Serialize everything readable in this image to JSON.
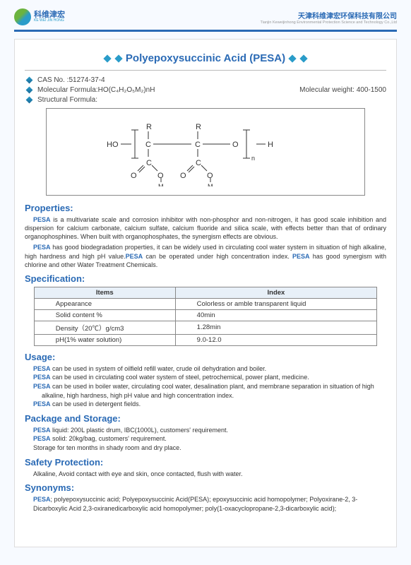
{
  "header": {
    "logo_cn": "科维津宏",
    "logo_en": "KE WEI JIN HONG",
    "company_cn": "天津科维津宏环保科技有限公司",
    "company_en": "Tianjin Keweijinhong Environmental Protection Science and Technology Co.,Ltd"
  },
  "title": "Polyepoxysuccinic Acid (PESA)",
  "meta": {
    "cas_label": "CAS No. : ",
    "cas": "51274-37-4",
    "mf_label": "Molecular Formula:  ",
    "mf": "HO(C₄H₂O₅M₂)nH",
    "mw_label": "Molecular weight:  ",
    "mw": "400-1500",
    "sf_label": "Structural Formula:"
  },
  "sections": {
    "properties": {
      "h": "Properties:",
      "p1": "PESA is a multivariate scale and corrosion inhibitor with non-phosphor and non-nitrogen, it has good scale inhibition and dispersion for calcium carbonate, calcium sulfate, calcium fluoride and silica scale, with effects better than that of ordinary organophosphines. When built with organophosphates, the synergism effects are obvious.",
      "p2_a": "PESA has good biodegradation properties, it can be widely used in circulating cool water system in situation of high alkaline, high hardness and high pH value.",
      "p2_b": "PESA can be operated under high concentration index. ",
      "p2_c": "PESA has good synergism with chlorine and other Water Treatment Chemicals."
    },
    "spec": {
      "h": "Specification:",
      "th1": "Items",
      "th2": "Index",
      "rows": [
        [
          "Appearance",
          "Colorless or amble transparent liquid"
        ],
        [
          "Solid content %",
          "40min"
        ],
        [
          "Density（20℃）g/cm3",
          "1.28min"
        ],
        [
          "pH(1% water solution)",
          "9.0-12.0"
        ]
      ]
    },
    "usage": {
      "h": "Usage:",
      "items": [
        "PESA can be used in system of oilfield refill water, crude oil dehydration and boiler.",
        "PESA can be used in circulating cool water system of steel, petrochemical, power plant, medicine.",
        "PESA can be used in boiler water, circulating cool water, desalination plant, and membrane separation in situation of high alkaline, high hardness, high pH value and high concentration index.",
        "PESA can be used in detergent fields."
      ]
    },
    "pkg": {
      "h": "Package and Storage:",
      "l1": "PESA liquid: 200L plastic drum, IBC(1000L), customers' requirement.",
      "l2": "PESA solid: 20kg/bag, customers' requirement.",
      "l3": "Storage for ten months in shady room and dry place."
    },
    "safety": {
      "h": "Safety Protection:",
      "p": "Alkaline, Avoid contact with eye and skin, once contacted, flush with water."
    },
    "syn": {
      "h": "Synonyms:",
      "p": "PESA; polyepoxysuccinic acid; Polyepoxysuccinic Acid(PESA); epoxysuccinic acid homopolymer; Polyoxirane-2, 3-Dicarboxylic Acid 2,3-oxiranedicarboxylic acid homopolymer; poly(1-oxacyclopropane-2,3-dicarboxylic acid);"
    }
  },
  "colors": {
    "blue": "#2a6ab5",
    "cyan": "#2a9cc9"
  }
}
